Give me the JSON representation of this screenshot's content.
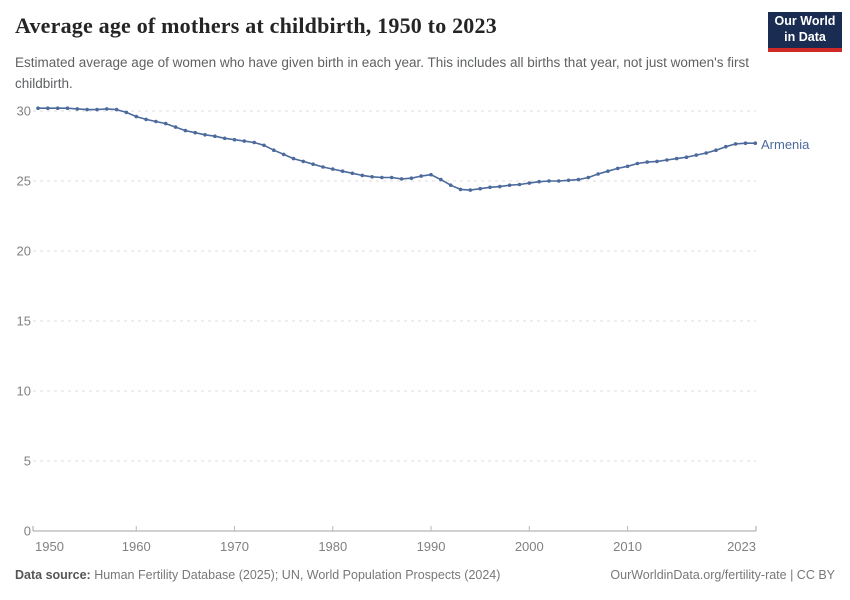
{
  "header": {
    "title": "Average age of mothers at childbirth, 1950 to 2023",
    "subtitle": "Estimated average age of women who have given birth in each year. This includes all births that year, not just women's first childbirth.",
    "logo": {
      "line1": "Our World",
      "line2": "in Data",
      "bg_color": "#1b2c52",
      "accent_color": "#cf2a28"
    }
  },
  "chart_data": {
    "type": "line",
    "title": "Average age of mothers at childbirth, 1950 to 2023",
    "xlabel": "",
    "ylabel": "",
    "xlim": [
      1950,
      2023
    ],
    "ylim": [
      0,
      30
    ],
    "xticks": [
      1950,
      1960,
      1970,
      1980,
      1990,
      2000,
      2010,
      2023
    ],
    "yticks": [
      0,
      5,
      10,
      15,
      20,
      25,
      30
    ],
    "grid": "horizontal-dashed",
    "legend_position": "end-of-line-label",
    "series": [
      {
        "name": "Armenia",
        "color": "#4C6A9C",
        "x": [
          1950,
          1951,
          1952,
          1953,
          1954,
          1955,
          1956,
          1957,
          1958,
          1959,
          1960,
          1961,
          1962,
          1963,
          1964,
          1965,
          1966,
          1967,
          1968,
          1969,
          1970,
          1971,
          1972,
          1973,
          1974,
          1975,
          1976,
          1977,
          1978,
          1979,
          1980,
          1981,
          1982,
          1983,
          1984,
          1985,
          1986,
          1987,
          1988,
          1989,
          1990,
          1991,
          1992,
          1993,
          1994,
          1995,
          1996,
          1997,
          1998,
          1999,
          2000,
          2001,
          2002,
          2003,
          2004,
          2005,
          2006,
          2007,
          2008,
          2009,
          2010,
          2011,
          2012,
          2013,
          2014,
          2015,
          2016,
          2017,
          2018,
          2019,
          2020,
          2021,
          2022,
          2023
        ],
        "values": [
          30.2,
          30.2,
          30.2,
          30.2,
          30.15,
          30.1,
          30.1,
          30.15,
          30.1,
          29.9,
          29.6,
          29.4,
          29.25,
          29.1,
          28.85,
          28.6,
          28.45,
          28.3,
          28.2,
          28.05,
          27.95,
          27.85,
          27.75,
          27.55,
          27.2,
          26.9,
          26.6,
          26.4,
          26.2,
          26.0,
          25.85,
          25.7,
          25.55,
          25.4,
          25.3,
          25.25,
          25.25,
          25.15,
          25.2,
          25.35,
          25.45,
          25.1,
          24.7,
          24.4,
          24.35,
          24.45,
          24.55,
          24.6,
          24.7,
          24.75,
          24.85,
          24.95,
          25.0,
          25.0,
          25.05,
          25.1,
          25.25,
          25.5,
          25.7,
          25.9,
          26.05,
          26.25,
          26.35,
          26.4,
          26.5,
          26.6,
          26.7,
          26.85,
          27.0,
          27.2,
          27.45,
          27.65,
          27.7,
          27.7
        ]
      }
    ]
  },
  "footer": {
    "datasource_label": "Data source:",
    "datasource_text": " Human Fertility Database (2025); UN, World Population Prospects (2024)",
    "link_text": "OurWorldinData.org/fertility-rate | CC BY"
  }
}
